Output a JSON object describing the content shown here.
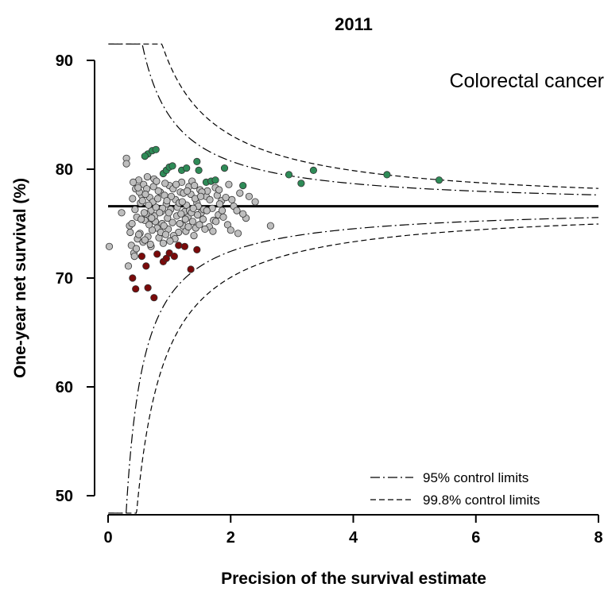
{
  "chart_data": {
    "type": "scatter",
    "title": "2011",
    "xlabel": "Precision of the survival estimate",
    "ylabel": "One-year net survival (%)",
    "annotation": "Colorectal cancer",
    "xlim": [
      0,
      8
    ],
    "ylim": [
      48.5,
      92
    ],
    "x_ticks": [
      "0",
      "2",
      "4",
      "6",
      "8"
    ],
    "y_ticks": [
      "50",
      "60",
      "70",
      "80",
      "90"
    ],
    "x_tick_values": [
      0,
      2,
      4,
      6,
      8
    ],
    "y_tick_values": [
      50,
      60,
      70,
      80,
      90
    ],
    "grid": false,
    "legend_position": "bottom-right",
    "center_line": 76.6,
    "control_limits": [
      {
        "name": "95% control limits",
        "style": "dashdot",
        "z": 1.96
      },
      {
        "name": "99.8% control limits",
        "style": "dashed",
        "z": 3.09
      }
    ],
    "series": [
      {
        "color": "#2e8b57",
        "points": [
          [
            0.65,
            81.4
          ],
          [
            0.72,
            81.7
          ],
          [
            0.78,
            81.8
          ],
          [
            0.6,
            81.2
          ],
          [
            0.9,
            79.6
          ],
          [
            0.95,
            79.9
          ],
          [
            1.0,
            80.2
          ],
          [
            1.05,
            80.3
          ],
          [
            1.2,
            79.9
          ],
          [
            1.28,
            80.1
          ],
          [
            1.45,
            80.7
          ],
          [
            1.48,
            79.9
          ],
          [
            1.6,
            78.8
          ],
          [
            1.68,
            78.9
          ],
          [
            1.75,
            79.0
          ],
          [
            1.9,
            80.1
          ],
          [
            2.2,
            78.5
          ],
          [
            2.95,
            79.5
          ],
          [
            3.15,
            78.7
          ],
          [
            3.35,
            79.9
          ],
          [
            4.55,
            79.5
          ],
          [
            5.4,
            79.0
          ]
        ]
      },
      {
        "color": "#7a0a0a",
        "points": [
          [
            0.4,
            70.0
          ],
          [
            0.45,
            69.0
          ],
          [
            0.55,
            72.0
          ],
          [
            0.65,
            69.1
          ],
          [
            0.75,
            68.2
          ],
          [
            0.8,
            72.2
          ],
          [
            0.9,
            71.5
          ],
          [
            0.95,
            71.8
          ],
          [
            1.0,
            72.3
          ],
          [
            1.08,
            72.0
          ],
          [
            1.15,
            73.0
          ],
          [
            1.25,
            72.9
          ],
          [
            1.35,
            70.8
          ],
          [
            1.45,
            72.6
          ],
          [
            0.62,
            71.1
          ]
        ]
      },
      {
        "color": "#bebebe",
        "points": [
          [
            0.02,
            72.9
          ],
          [
            0.3,
            81.0
          ],
          [
            0.3,
            80.5
          ],
          [
            0.22,
            76.0
          ],
          [
            0.35,
            74.8
          ],
          [
            0.4,
            77.3
          ],
          [
            0.45,
            78.2
          ],
          [
            0.5,
            79.0
          ],
          [
            0.55,
            77.6
          ],
          [
            0.6,
            75.3
          ],
          [
            0.65,
            73.8
          ],
          [
            0.7,
            76.2
          ],
          [
            0.75,
            79.1
          ],
          [
            0.8,
            74.6
          ],
          [
            0.85,
            77.9
          ],
          [
            0.9,
            73.2
          ],
          [
            0.95,
            76.8
          ],
          [
            1.0,
            78.5
          ],
          [
            1.05,
            75.1
          ],
          [
            1.1,
            77.2
          ],
          [
            1.15,
            74.2
          ],
          [
            1.2,
            78.8
          ],
          [
            1.25,
            76.1
          ],
          [
            1.3,
            75.6
          ],
          [
            1.35,
            77.7
          ],
          [
            1.4,
            73.9
          ],
          [
            1.45,
            76.9
          ],
          [
            1.5,
            78.1
          ],
          [
            1.55,
            75.4
          ],
          [
            1.6,
            77.5
          ],
          [
            1.65,
            74.7
          ],
          [
            1.7,
            76.4
          ],
          [
            1.75,
            78.3
          ],
          [
            1.8,
            75.8
          ],
          [
            1.85,
            77.1
          ],
          [
            1.95,
            74.9
          ],
          [
            2.05,
            76.6
          ],
          [
            2.15,
            77.8
          ],
          [
            2.25,
            75.5
          ],
          [
            2.4,
            77.0
          ],
          [
            2.65,
            74.8
          ],
          [
            0.38,
            73.0
          ],
          [
            0.42,
            72.3
          ],
          [
            0.48,
            73.6
          ],
          [
            0.52,
            74.1
          ],
          [
            0.58,
            78.6
          ],
          [
            0.62,
            75.9
          ],
          [
            0.68,
            77.4
          ],
          [
            0.72,
            74.4
          ],
          [
            0.78,
            76.5
          ],
          [
            0.82,
            78.0
          ],
          [
            0.88,
            75.0
          ],
          [
            0.92,
            77.6
          ],
          [
            0.98,
            74.5
          ],
          [
            1.02,
            76.3
          ],
          [
            1.12,
            75.7
          ],
          [
            1.18,
            77.9
          ],
          [
            1.22,
            74.8
          ],
          [
            1.28,
            76.7
          ],
          [
            1.32,
            78.4
          ],
          [
            1.38,
            75.2
          ],
          [
            1.42,
            77.3
          ],
          [
            1.52,
            76.0
          ],
          [
            1.58,
            74.5
          ],
          [
            1.62,
            78.0
          ],
          [
            1.72,
            75.3
          ],
          [
            1.82,
            76.8
          ],
          [
            1.92,
            77.4
          ],
          [
            2.0,
            74.4
          ],
          [
            2.1,
            76.2
          ],
          [
            2.3,
            77.5
          ],
          [
            0.47,
            75.6
          ],
          [
            0.53,
            76.9
          ],
          [
            0.57,
            73.3
          ],
          [
            0.63,
            78.2
          ],
          [
            0.67,
            74.9
          ],
          [
            0.73,
            77.0
          ],
          [
            0.77,
            75.2
          ],
          [
            0.83,
            73.7
          ],
          [
            0.87,
            76.1
          ],
          [
            0.93,
            78.7
          ],
          [
            0.97,
            75.5
          ],
          [
            1.03,
            77.5
          ],
          [
            1.07,
            73.9
          ],
          [
            1.13,
            76.5
          ],
          [
            1.17,
            75.0
          ],
          [
            1.23,
            77.8
          ],
          [
            1.27,
            74.3
          ],
          [
            1.33,
            76.2
          ],
          [
            1.37,
            78.9
          ],
          [
            1.43,
            74.6
          ],
          [
            1.47,
            76.6
          ],
          [
            1.53,
            77.9
          ],
          [
            0.44,
            76.3
          ],
          [
            0.5,
            74.0
          ],
          [
            0.56,
            77.1
          ],
          [
            0.6,
            73.5
          ],
          [
            0.66,
            76.7
          ],
          [
            0.7,
            72.9
          ],
          [
            0.74,
            78.4
          ],
          [
            0.86,
            74.2
          ],
          [
            0.96,
            77.1
          ],
          [
            1.06,
            78.2
          ],
          [
            1.16,
            76.9
          ],
          [
            1.26,
            75.4
          ],
          [
            1.36,
            76.0
          ],
          [
            1.46,
            75.8
          ],
          [
            1.56,
            76.3
          ],
          [
            1.66,
            77.2
          ],
          [
            1.78,
            77.6
          ],
          [
            1.88,
            75.6
          ],
          [
            2.2,
            75.9
          ],
          [
            0.36,
            74.2
          ],
          [
            0.41,
            78.8
          ],
          [
            0.46,
            72.7
          ],
          [
            0.51,
            77.9
          ],
          [
            0.54,
            75.4
          ],
          [
            0.59,
            76.0
          ],
          [
            0.64,
            79.3
          ],
          [
            0.69,
            73.1
          ],
          [
            0.76,
            75.7
          ],
          [
            0.81,
            77.3
          ],
          [
            0.89,
            76.4
          ],
          [
            0.94,
            74.0
          ],
          [
            0.99,
            76.0
          ],
          [
            1.09,
            73.6
          ],
          [
            1.19,
            75.9
          ],
          [
            1.29,
            78.0
          ],
          [
            1.39,
            76.4
          ],
          [
            1.49,
            74.9
          ],
          [
            0.33,
            71.1
          ],
          [
            0.39,
            75.0
          ],
          [
            0.43,
            72.0
          ],
          [
            0.49,
            78.3
          ],
          [
            0.61,
            77.7
          ],
          [
            0.71,
            75.5
          ],
          [
            0.79,
            78.9
          ],
          [
            0.84,
            76.0
          ],
          [
            0.91,
            74.8
          ],
          [
            1.01,
            73.4
          ],
          [
            1.11,
            78.6
          ],
          [
            1.21,
            77.0
          ],
          [
            1.31,
            74.7
          ],
          [
            1.41,
            78.5
          ],
          [
            1.51,
            77.5
          ],
          [
            1.61,
            76.2
          ],
          [
            1.71,
            74.3
          ],
          [
            1.81,
            78.1
          ],
          [
            2.02,
            77.2
          ],
          [
            1.97,
            78.6
          ],
          [
            2.12,
            74.1
          ],
          [
            1.86,
            76.2
          ],
          [
            1.76,
            75.2
          ]
        ]
      }
    ]
  }
}
